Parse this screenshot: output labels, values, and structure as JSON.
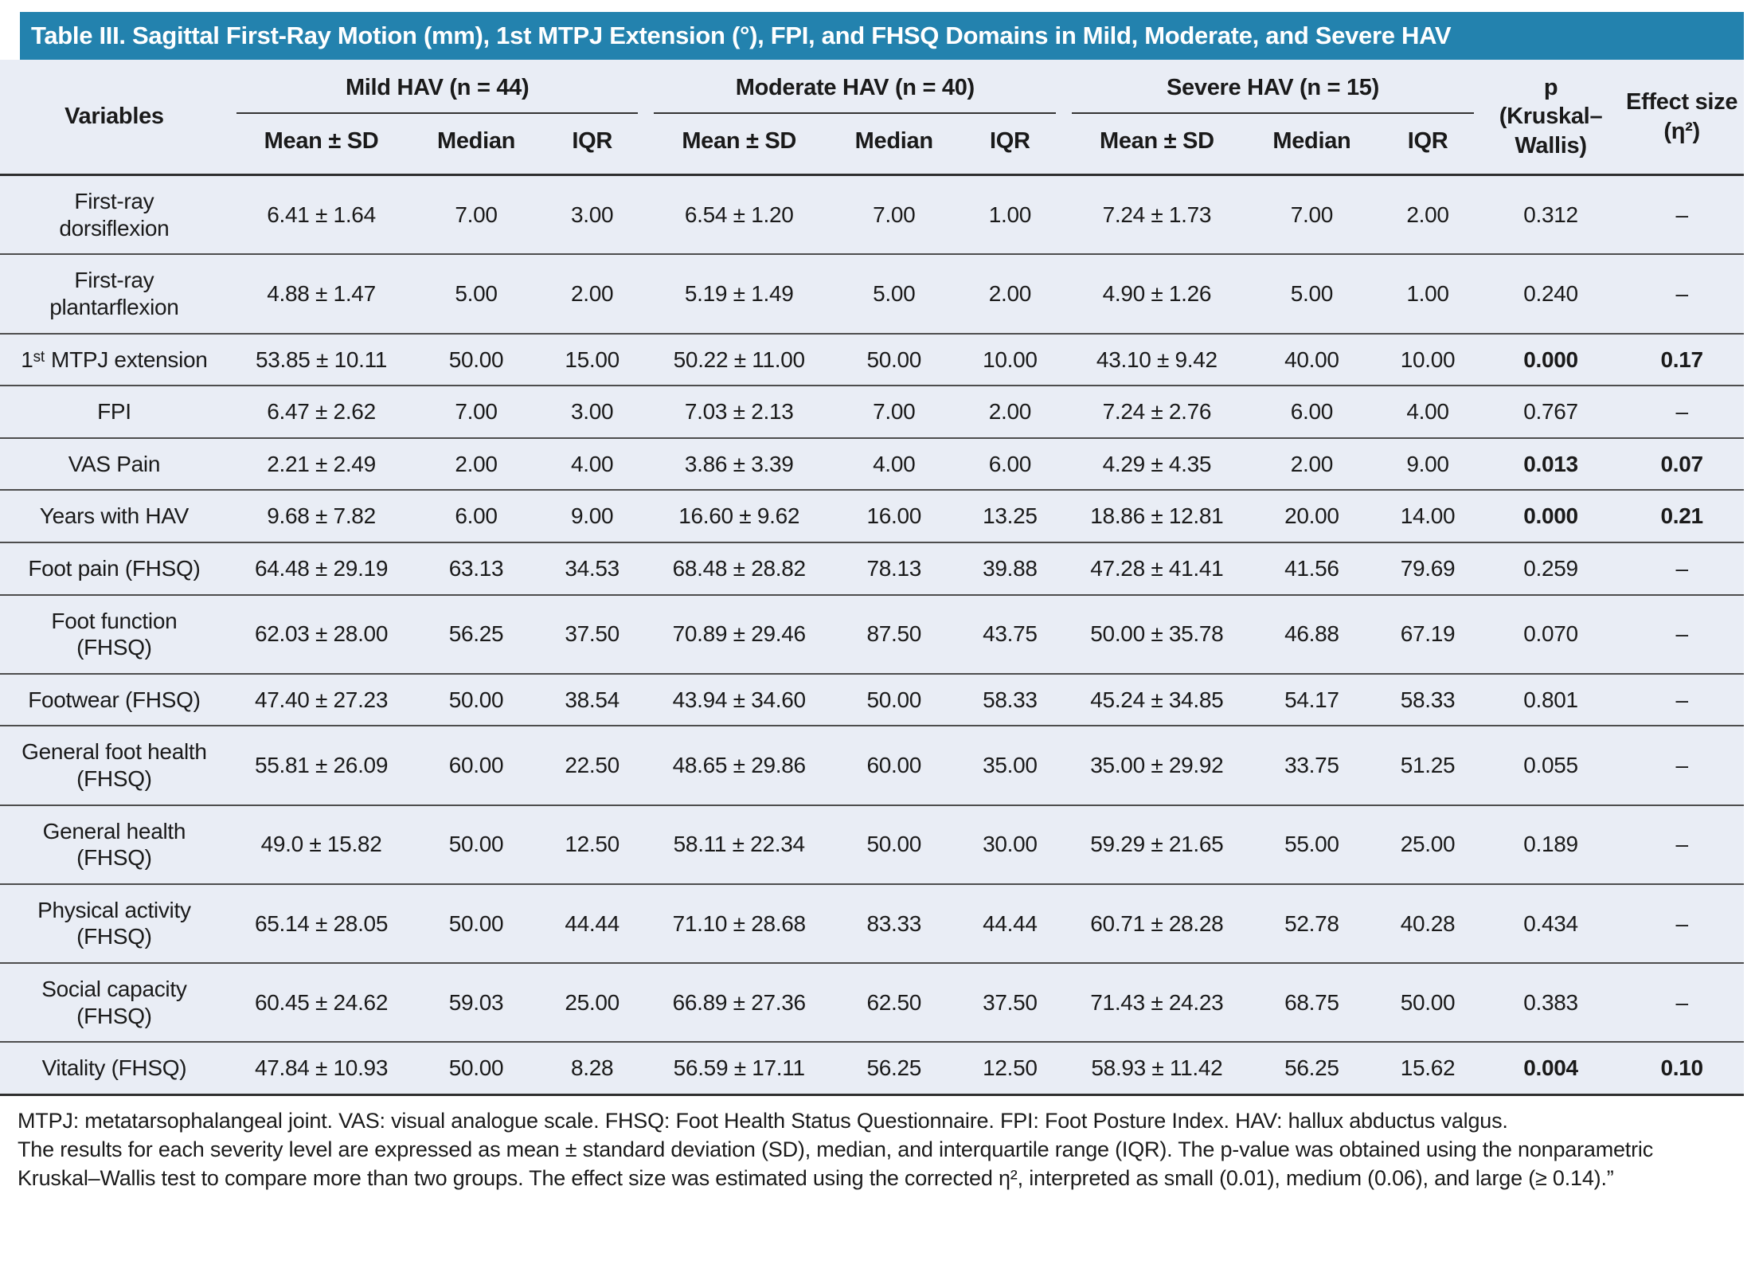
{
  "table": {
    "title": "Table III. Sagittal First-Ray Motion (mm), 1st MTPJ Extension (°), FPI, and FHSQ Domains in Mild, Moderate, and Severe HAV",
    "header": {
      "variables_label": "Variables",
      "groups": [
        {
          "label": "Mild HAV (n = 44)"
        },
        {
          "label": "Moderate HAV (n = 40)"
        },
        {
          "label": "Severe HAV (n = 15)"
        }
      ],
      "sub_columns": [
        "Mean ± SD",
        "Median",
        "IQR"
      ],
      "p_line1": "p",
      "p_line2": "(Kruskal–Wallis)",
      "effect_label": "Effect size (η²)"
    },
    "rows": [
      {
        "variable": "First-ray dorsiflexion",
        "cells": [
          "6.41 ± 1.64",
          "7.00",
          "3.00",
          "6.54 ± 1.20",
          "7.00",
          "1.00",
          "7.24 ± 1.73",
          "7.00",
          "2.00"
        ],
        "p": "0.312",
        "effect": "–",
        "significant": false
      },
      {
        "variable": "First-ray plantarflexion",
        "cells": [
          "4.88 ± 1.47",
          "5.00",
          "2.00",
          "5.19 ± 1.49",
          "5.00",
          "2.00",
          "4.90 ± 1.26",
          "5.00",
          "1.00"
        ],
        "p": "0.240",
        "effect": "–",
        "significant": false
      },
      {
        "variable": "1ˢᵗ MTPJ extension",
        "cells": [
          "53.85 ± 10.11",
          "50.00",
          "15.00",
          "50.22 ± 11.00",
          "50.00",
          "10.00",
          "43.10 ± 9.42",
          "40.00",
          "10.00"
        ],
        "p": "0.000",
        "effect": "0.17",
        "significant": true
      },
      {
        "variable": "FPI",
        "cells": [
          "6.47 ± 2.62",
          "7.00",
          "3.00",
          "7.03 ± 2.13",
          "7.00",
          "2.00",
          "7.24 ± 2.76",
          "6.00",
          "4.00"
        ],
        "p": "0.767",
        "effect": "–",
        "significant": false
      },
      {
        "variable": "VAS Pain",
        "cells": [
          "2.21 ± 2.49",
          "2.00",
          "4.00",
          "3.86 ± 3.39",
          "4.00",
          "6.00",
          "4.29 ± 4.35",
          "2.00",
          "9.00"
        ],
        "p": "0.013",
        "effect": "0.07",
        "significant": true
      },
      {
        "variable": "Years with HAV",
        "cells": [
          "9.68 ± 7.82",
          "6.00",
          "9.00",
          "16.60 ± 9.62",
          "16.00",
          "13.25",
          "18.86 ± 12.81",
          "20.00",
          "14.00"
        ],
        "p": "0.000",
        "effect": "0.21",
        "significant": true
      },
      {
        "variable": "Foot pain (FHSQ)",
        "cells": [
          "64.48 ± 29.19",
          "63.13",
          "34.53",
          "68.48 ± 28.82",
          "78.13",
          "39.88",
          "47.28 ± 41.41",
          "41.56",
          "79.69"
        ],
        "p": "0.259",
        "effect": "–",
        "significant": false
      },
      {
        "variable": "Foot function (FHSQ)",
        "cells": [
          "62.03 ± 28.00",
          "56.25",
          "37.50",
          "70.89 ± 29.46",
          "87.50",
          "43.75",
          "50.00 ± 35.78",
          "46.88",
          "67.19"
        ],
        "p": "0.070",
        "effect": "–",
        "significant": false
      },
      {
        "variable": "Footwear (FHSQ)",
        "cells": [
          "47.40 ± 27.23",
          "50.00",
          "38.54",
          "43.94 ± 34.60",
          "50.00",
          "58.33",
          "45.24 ± 34.85",
          "54.17",
          "58.33"
        ],
        "p": "0.801",
        "effect": "–",
        "significant": false
      },
      {
        "variable": "General foot health (FHSQ)",
        "cells": [
          "55.81 ± 26.09",
          "60.00",
          "22.50",
          "48.65 ± 29.86",
          "60.00",
          "35.00",
          "35.00 ± 29.92",
          "33.75",
          "51.25"
        ],
        "p": "0.055",
        "effect": "–",
        "significant": false
      },
      {
        "variable": "General health (FHSQ)",
        "cells": [
          "49.0 ± 15.82",
          "50.00",
          "12.50",
          "58.11 ± 22.34",
          "50.00",
          "30.00",
          "59.29 ± 21.65",
          "55.00",
          "25.00"
        ],
        "p": "0.189",
        "effect": "–",
        "significant": false
      },
      {
        "variable": "Physical activity (FHSQ)",
        "cells": [
          "65.14 ± 28.05",
          "50.00",
          "44.44",
          "71.10 ± 28.68",
          "83.33",
          "44.44",
          "60.71 ± 28.28",
          "52.78",
          "40.28"
        ],
        "p": "0.434",
        "effect": "–",
        "significant": false
      },
      {
        "variable": "Social capacity (FHSQ)",
        "cells": [
          "60.45 ± 24.62",
          "59.03",
          "25.00",
          "66.89 ± 27.36",
          "62.50",
          "37.50",
          "71.43 ± 24.23",
          "68.75",
          "50.00"
        ],
        "p": "0.383",
        "effect": "–",
        "significant": false
      },
      {
        "variable": "Vitality (FHSQ)",
        "cells": [
          "47.84 ± 10.93",
          "50.00",
          "8.28",
          "56.59 ± 17.11",
          "56.25",
          "12.50",
          "58.93 ± 11.42",
          "56.25",
          "15.62"
        ],
        "p": "0.004",
        "effect": "0.10",
        "significant": true
      }
    ],
    "footnotes": [
      "MTPJ: metatarsophalangeal joint. VAS: visual analogue scale. FHSQ: Foot Health Status Questionnaire. FPI: Foot Posture Index. HAV: hallux abductus valgus.",
      "The results for each severity level are expressed as mean ± standard deviation (SD), median, and interquartile range (IQR). The p-value was obtained using the nonparametric Kruskal–Wallis test to compare more than two groups. The effect size was estimated using the corrected η², interpreted as small (0.01), medium (0.06), and large (≥ 0.14).”"
    ]
  },
  "colors": {
    "title_bar": "#2382ae",
    "table_background": "#e9edf5",
    "heavy_rule": "#2e2e2e",
    "row_rule": "#4d4d4d",
    "text": "#1a1a1a"
  }
}
